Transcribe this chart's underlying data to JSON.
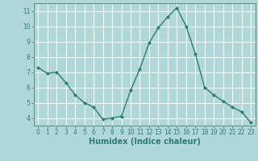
{
  "x": [
    0,
    1,
    2,
    3,
    4,
    5,
    6,
    7,
    8,
    9,
    10,
    11,
    12,
    13,
    14,
    15,
    16,
    17,
    18,
    19,
    20,
    21,
    22,
    23
  ],
  "y": [
    7.3,
    6.9,
    7.0,
    6.3,
    5.5,
    5.0,
    4.7,
    3.9,
    4.0,
    4.1,
    5.8,
    7.2,
    8.9,
    9.9,
    10.6,
    11.2,
    10.0,
    8.2,
    6.0,
    5.5,
    5.1,
    4.7,
    4.4,
    3.7
  ],
  "line_color": "#2e7d6e",
  "marker": "D",
  "marker_size": 2.0,
  "bg_color": "#b0d8d8",
  "grid_color": "#ffffff",
  "xlabel": "Humidex (Indice chaleur)",
  "ylim": [
    3.5,
    11.5
  ],
  "xlim": [
    -0.5,
    23.5
  ],
  "yticks": [
    4,
    5,
    6,
    7,
    8,
    9,
    10,
    11
  ],
  "xticks": [
    0,
    1,
    2,
    3,
    4,
    5,
    6,
    7,
    8,
    9,
    10,
    11,
    12,
    13,
    14,
    15,
    16,
    17,
    18,
    19,
    20,
    21,
    22,
    23
  ],
  "tick_fontsize": 5.5,
  "xlabel_fontsize": 7.0,
  "line_width": 1.0,
  "axis_color": "#2e7d6e",
  "spine_color": "#5a8a80"
}
